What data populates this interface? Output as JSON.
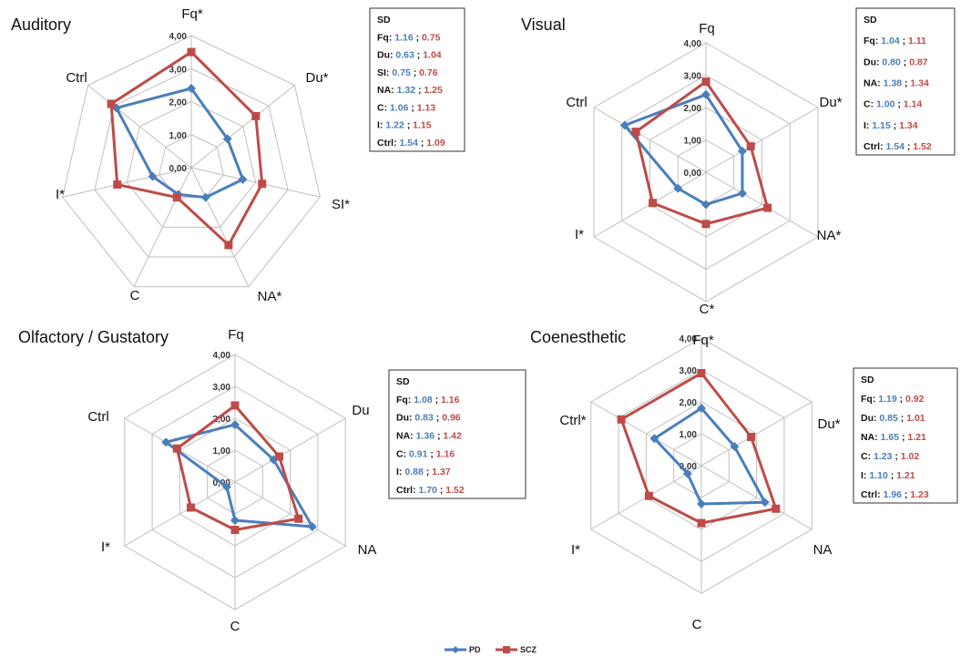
{
  "colors": {
    "PD": "#4a7ebb",
    "SCZ": "#be4b48",
    "grid": "#bfbfbf",
    "ink": "#111111"
  },
  "legend": {
    "placement": "bottom-center"
  },
  "chart_data": [
    {
      "type": "radar",
      "title": "Auditory",
      "axes": [
        "Fq*",
        "Du*",
        "SI*",
        "NA*",
        "C",
        "I*",
        "Ctrl"
      ],
      "ticks": [
        "0,00",
        "1,00",
        "2,00",
        "3,00",
        "4,00"
      ],
      "range": [
        0,
        4
      ],
      "series": [
        {
          "name": "PD",
          "values": [
            2.4,
            1.4,
            1.6,
            1.0,
            0.9,
            1.2,
            2.9
          ]
        },
        {
          "name": "SCZ",
          "values": [
            3.5,
            2.5,
            2.2,
            2.6,
            1.0,
            2.3,
            3.1
          ]
        }
      ],
      "sd": {
        "heading": "SD",
        "rows": [
          {
            "label": "Fq:",
            "pd": "1.16",
            "scz": "0.75"
          },
          {
            "label": "Du:",
            "pd": "0.63",
            "scz": "1.04"
          },
          {
            "label": "SI:",
            "pd": "0.75",
            "scz": "0.76"
          },
          {
            "label": "NA:",
            "pd": "1.32",
            "scz": "1.25"
          },
          {
            "label": "C:",
            "pd": "1.06",
            "scz": "1.13"
          },
          {
            "label": "I:",
            "pd": "1.22",
            "scz": "1.15"
          },
          {
            "label": "Ctrl:",
            "pd": "1.54",
            "scz": "1.09"
          }
        ]
      }
    },
    {
      "type": "radar",
      "title": "Visual",
      "axes": [
        "Fq",
        "Du*",
        "NA*",
        "C*",
        "I*",
        "Ctrl"
      ],
      "ticks": [
        "0,00",
        "1,00",
        "2,00",
        "3,00",
        "4,00"
      ],
      "range": [
        0,
        4
      ],
      "series": [
        {
          "name": "PD",
          "values": [
            2.4,
            1.3,
            1.3,
            1.0,
            1.0,
            2.9
          ]
        },
        {
          "name": "SCZ",
          "values": [
            2.8,
            1.6,
            2.2,
            1.6,
            1.9,
            2.5
          ]
        }
      ],
      "sd": {
        "heading": "SD",
        "rows": [
          {
            "label": "Fq:",
            "pd": "1.04",
            "scz": "1.11"
          },
          {
            "label": "Du:",
            "pd": "0.80",
            "scz": "0.87"
          },
          {
            "label": "NA:",
            "pd": "1.38",
            "scz": "1.34"
          },
          {
            "label": "C:",
            "pd": "1.00",
            "scz": "1.14"
          },
          {
            "label": "I:",
            "pd": "1.15",
            "scz": "1.34"
          },
          {
            "label": "Ctrl:",
            "pd": "1.54",
            "scz": "1.52"
          }
        ]
      }
    },
    {
      "type": "radar",
      "title": "Olfactory / Gustatory",
      "axes": [
        "Fq",
        "Du",
        "NA",
        "C",
        "I*",
        "Ctrl"
      ],
      "ticks": [
        "0,00",
        "1,00",
        "2,00",
        "3,00",
        "4,00"
      ],
      "range": [
        0,
        4
      ],
      "series": [
        {
          "name": "PD",
          "values": [
            1.8,
            1.4,
            2.8,
            1.2,
            0.3,
            2.5
          ]
        },
        {
          "name": "SCZ",
          "values": [
            2.4,
            1.6,
            2.3,
            1.5,
            1.6,
            2.1
          ]
        }
      ],
      "sd": {
        "heading": "SD",
        "rows": [
          {
            "label": "Fq:",
            "pd": "1.08",
            "scz": "1.16"
          },
          {
            "label": "Du:",
            "pd": "0.83",
            "scz": "0.96"
          },
          {
            "label": "NA:",
            "pd": "1.36",
            "scz": "1.42"
          },
          {
            "label": "C:",
            "pd": "0.91",
            "scz": "1.16"
          },
          {
            "label": "I:",
            "pd": "0.88",
            "scz": "1.37"
          },
          {
            "label": "Ctrl:",
            "pd": "1.70",
            "scz": "1.52"
          }
        ]
      }
    },
    {
      "type": "radar",
      "title": "Coenesthetic",
      "axes": [
        "Fq*",
        "Du*",
        "NA",
        "C",
        "I*",
        "Ctrl*"
      ],
      "ticks": [
        "0,00",
        "1,00",
        "2,00",
        "3,00",
        "4,00"
      ],
      "range": [
        0,
        4
      ],
      "series": [
        {
          "name": "PD",
          "values": [
            1.8,
            1.2,
            2.3,
            1.2,
            0.5,
            1.7
          ]
        },
        {
          "name": "SCZ",
          "values": [
            2.9,
            1.8,
            2.7,
            1.8,
            1.9,
            2.9
          ]
        }
      ],
      "sd": {
        "heading": "SD",
        "rows": [
          {
            "label": "Fq:",
            "pd": "1.19",
            "scz": "0.92"
          },
          {
            "label": "Du:",
            "pd": "0.85",
            "scz": "1.01"
          },
          {
            "label": "NA:",
            "pd": "1.65",
            "scz": "1.21"
          },
          {
            "label": "C:",
            "pd": "1.23",
            "scz": "1.02"
          },
          {
            "label": "I:",
            "pd": "1.10",
            "scz": "1.21"
          },
          {
            "label": "Ctrl:",
            "pd": "1.96",
            "scz": "1.23"
          }
        ]
      }
    }
  ]
}
